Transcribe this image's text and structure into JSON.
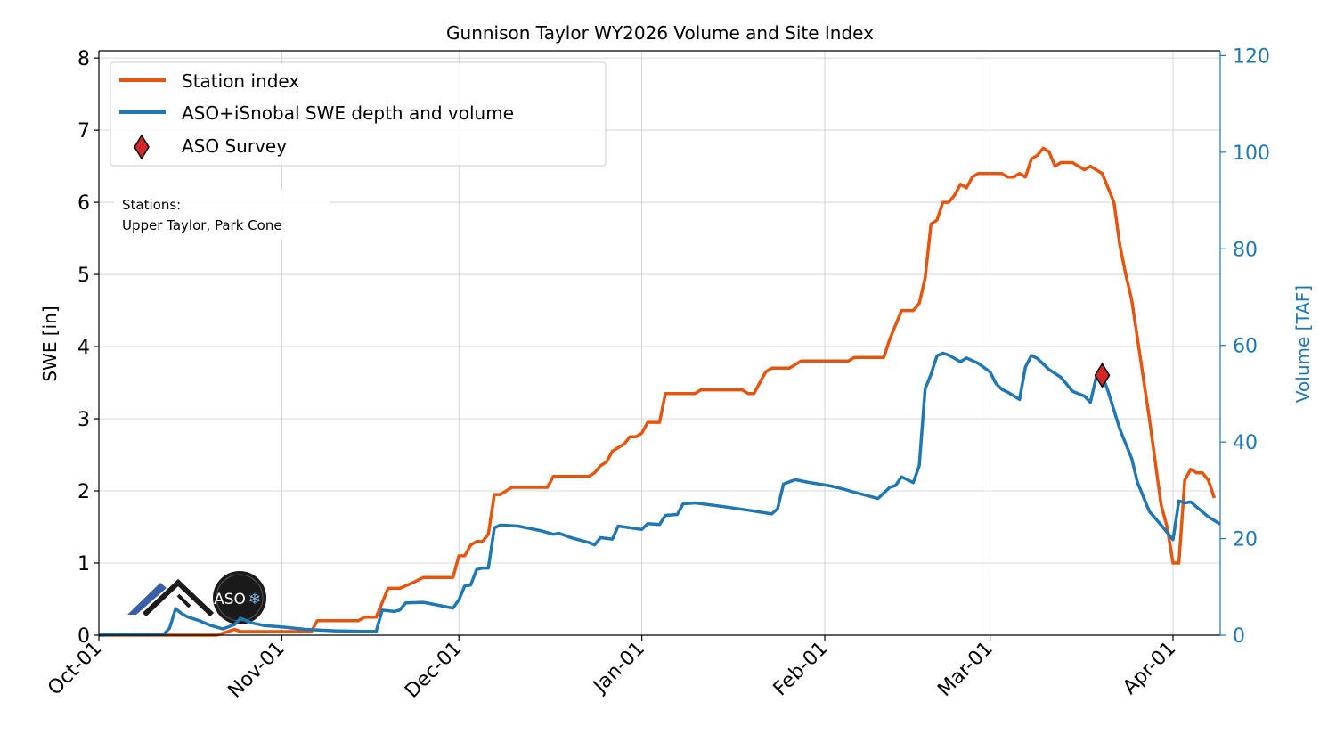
{
  "chart_data": {
    "type": "line",
    "title": "Gunnison Taylor WY2026 Volume and Site Index",
    "ylabel": "SWE [in]",
    "y2label": "Volume [TAF]",
    "ylim": [
      0,
      8.1
    ],
    "y2lim": [
      0,
      121
    ],
    "yticks": [
      0,
      1,
      2,
      3,
      4,
      5,
      6,
      7,
      8
    ],
    "y2ticks": [
      0,
      20,
      40,
      60,
      80,
      100,
      120
    ],
    "xlim": [
      "2025-10-01",
      "2026-04-09"
    ],
    "xticks": [
      {
        "date": "2025-10-01",
        "label": "Oct-01"
      },
      {
        "date": "2025-11-01",
        "label": "Nov-01"
      },
      {
        "date": "2025-12-01",
        "label": "Dec-01"
      },
      {
        "date": "2026-01-01",
        "label": "Jan-01"
      },
      {
        "date": "2026-02-01",
        "label": "Feb-01"
      },
      {
        "date": "2026-03-01",
        "label": "Mar-01"
      },
      {
        "date": "2026-04-01",
        "label": "Apr-01"
      }
    ],
    "grid": true,
    "legend_placement": "upper-left",
    "annotation": {
      "line1": "Stations:",
      "line2": "Upper Taylor, Park Cone"
    },
    "series": [
      {
        "name": "Station index",
        "axis": "left",
        "color": "#e6550d",
        "points": [
          [
            "2025-10-01",
            0
          ],
          [
            "2025-10-21",
            0
          ],
          [
            "2025-10-24",
            0.08
          ],
          [
            "2025-10-25",
            0.05
          ],
          [
            "2025-11-06",
            0.05
          ],
          [
            "2025-11-07",
            0.2
          ],
          [
            "2025-11-14",
            0.2
          ],
          [
            "2025-11-15",
            0.25
          ],
          [
            "2025-11-17",
            0.25
          ],
          [
            "2025-11-19",
            0.65
          ],
          [
            "2025-11-21",
            0.65
          ],
          [
            "2025-11-23",
            0.72
          ],
          [
            "2025-11-25",
            0.8
          ],
          [
            "2025-11-30",
            0.8
          ],
          [
            "2025-12-01",
            1.1
          ],
          [
            "2025-12-02",
            1.1
          ],
          [
            "2025-12-03",
            1.25
          ],
          [
            "2025-12-04",
            1.3
          ],
          [
            "2025-12-05",
            1.3
          ],
          [
            "2025-12-06",
            1.4
          ],
          [
            "2025-12-07",
            1.95
          ],
          [
            "2025-12-08",
            1.95
          ],
          [
            "2025-12-10",
            2.05
          ],
          [
            "2025-12-16",
            2.05
          ],
          [
            "2025-12-17",
            2.2
          ],
          [
            "2025-12-23",
            2.2
          ],
          [
            "2025-12-24",
            2.25
          ],
          [
            "2025-12-25",
            2.35
          ],
          [
            "2025-12-26",
            2.4
          ],
          [
            "2025-12-27",
            2.55
          ],
          [
            "2025-12-29",
            2.65
          ],
          [
            "2025-12-30",
            2.75
          ],
          [
            "2025-12-31",
            2.75
          ],
          [
            "2026-01-01",
            2.8
          ],
          [
            "2026-01-02",
            2.95
          ],
          [
            "2026-01-04",
            2.95
          ],
          [
            "2026-01-05",
            3.35
          ],
          [
            "2026-01-10",
            3.35
          ],
          [
            "2026-01-11",
            3.4
          ],
          [
            "2026-01-18",
            3.4
          ],
          [
            "2026-01-19",
            3.35
          ],
          [
            "2026-01-20",
            3.35
          ],
          [
            "2026-01-21",
            3.5
          ],
          [
            "2026-01-22",
            3.65
          ],
          [
            "2026-01-23",
            3.7
          ],
          [
            "2026-01-26",
            3.7
          ],
          [
            "2026-01-27",
            3.75
          ],
          [
            "2026-01-28",
            3.8
          ],
          [
            "2026-02-05",
            3.8
          ],
          [
            "2026-02-06",
            3.85
          ],
          [
            "2026-02-11",
            3.85
          ],
          [
            "2026-02-12",
            4.1
          ],
          [
            "2026-02-14",
            4.5
          ],
          [
            "2026-02-16",
            4.5
          ],
          [
            "2026-02-17",
            4.6
          ],
          [
            "2026-02-18",
            4.95
          ],
          [
            "2026-02-19",
            5.7
          ],
          [
            "2026-02-20",
            5.75
          ],
          [
            "2026-02-21",
            6.0
          ],
          [
            "2026-02-22",
            6.0
          ],
          [
            "2026-02-23",
            6.1
          ],
          [
            "2026-02-24",
            6.25
          ],
          [
            "2026-02-25",
            6.2
          ],
          [
            "2026-02-26",
            6.35
          ],
          [
            "2026-02-27",
            6.4
          ],
          [
            "2026-03-03",
            6.4
          ],
          [
            "2026-03-04",
            6.35
          ],
          [
            "2026-03-05",
            6.35
          ],
          [
            "2026-03-06",
            6.4
          ],
          [
            "2026-03-07",
            6.35
          ],
          [
            "2026-03-08",
            6.6
          ],
          [
            "2026-03-09",
            6.65
          ],
          [
            "2026-03-10",
            6.75
          ],
          [
            "2026-03-11",
            6.7
          ],
          [
            "2026-03-12",
            6.5
          ],
          [
            "2026-03-13",
            6.55
          ],
          [
            "2026-03-15",
            6.55
          ],
          [
            "2026-03-16",
            6.5
          ],
          [
            "2026-03-17",
            6.45
          ],
          [
            "2026-03-18",
            6.5
          ],
          [
            "2026-03-20",
            6.4
          ],
          [
            "2026-03-22",
            6.0
          ],
          [
            "2026-03-23",
            5.4
          ],
          [
            "2026-03-24",
            5.0
          ],
          [
            "2026-03-25",
            4.65
          ],
          [
            "2026-03-28",
            3.0
          ],
          [
            "2026-03-30",
            1.8
          ],
          [
            "2026-03-31",
            1.5
          ],
          [
            "2026-04-01",
            1.0
          ],
          [
            "2026-04-02",
            1.0
          ],
          [
            "2026-04-03",
            2.15
          ],
          [
            "2026-04-04",
            2.3
          ],
          [
            "2026-04-05",
            2.25
          ],
          [
            "2026-04-06",
            2.25
          ],
          [
            "2026-04-07",
            2.15
          ],
          [
            "2026-04-08",
            1.9
          ]
        ]
      },
      {
        "name": "ASO+iSnobal SWE depth and volume",
        "axis": "right",
        "color": "#1f77b4",
        "points": [
          [
            "2025-10-01",
            0
          ],
          [
            "2025-10-05",
            0.2
          ],
          [
            "2025-10-09",
            0.1
          ],
          [
            "2025-10-12",
            0.2
          ],
          [
            "2025-10-13",
            1.5
          ],
          [
            "2025-10-14",
            5.5
          ],
          [
            "2025-10-15",
            4.5
          ],
          [
            "2025-10-16",
            3.8
          ],
          [
            "2025-10-18",
            3.0
          ],
          [
            "2025-10-20",
            2.0
          ],
          [
            "2025-10-22",
            1.3
          ],
          [
            "2025-10-24",
            2.2
          ],
          [
            "2025-10-25",
            3.5
          ],
          [
            "2025-10-27",
            2.5
          ],
          [
            "2025-10-29",
            2.0
          ],
          [
            "2025-11-01",
            1.7
          ],
          [
            "2025-11-05",
            1.2
          ],
          [
            "2025-11-10",
            0.9
          ],
          [
            "2025-11-15",
            0.8
          ],
          [
            "2025-11-17",
            0.8
          ],
          [
            "2025-11-18",
            5.2
          ],
          [
            "2025-11-20",
            4.9
          ],
          [
            "2025-11-21",
            5.2
          ],
          [
            "2025-11-22",
            6.7
          ],
          [
            "2025-11-25",
            6.8
          ],
          [
            "2025-11-30",
            5.6
          ],
          [
            "2025-12-01",
            7.3
          ],
          [
            "2025-12-02",
            10.2
          ],
          [
            "2025-12-03",
            10.4
          ],
          [
            "2025-12-04",
            13.6
          ],
          [
            "2025-12-05",
            13.9
          ],
          [
            "2025-12-06",
            13.9
          ],
          [
            "2025-12-07",
            22.2
          ],
          [
            "2025-12-08",
            22.8
          ],
          [
            "2025-12-11",
            22.6
          ],
          [
            "2025-12-15",
            21.6
          ],
          [
            "2025-12-17",
            20.9
          ],
          [
            "2025-12-18",
            21.1
          ],
          [
            "2025-12-20",
            20.2
          ],
          [
            "2025-12-23",
            19.2
          ],
          [
            "2025-12-24",
            18.7
          ],
          [
            "2025-12-25",
            20.2
          ],
          [
            "2025-12-27",
            19.9
          ],
          [
            "2025-12-28",
            22.6
          ],
          [
            "2026-01-01",
            21.9
          ],
          [
            "2026-01-02",
            23.1
          ],
          [
            "2026-01-04",
            22.9
          ],
          [
            "2026-01-05",
            24.8
          ],
          [
            "2026-01-07",
            25.0
          ],
          [
            "2026-01-08",
            27.2
          ],
          [
            "2026-01-10",
            27.4
          ],
          [
            "2026-01-15",
            26.6
          ],
          [
            "2026-01-20",
            25.7
          ],
          [
            "2026-01-23",
            25.1
          ],
          [
            "2026-01-24",
            26.2
          ],
          [
            "2026-01-25",
            31.3
          ],
          [
            "2026-01-27",
            32.2
          ],
          [
            "2026-01-29",
            31.7
          ],
          [
            "2026-02-02",
            30.9
          ],
          [
            "2026-02-04",
            30.3
          ],
          [
            "2026-02-06",
            29.6
          ],
          [
            "2026-02-10",
            28.3
          ],
          [
            "2026-02-12",
            30.6
          ],
          [
            "2026-02-13",
            31.0
          ],
          [
            "2026-02-14",
            32.8
          ],
          [
            "2026-02-16",
            31.6
          ],
          [
            "2026-02-17",
            35.1
          ],
          [
            "2026-02-18",
            51.0
          ],
          [
            "2026-02-19",
            54.0
          ],
          [
            "2026-02-20",
            57.8
          ],
          [
            "2026-02-21",
            58.4
          ],
          [
            "2026-02-22",
            58.0
          ],
          [
            "2026-02-24",
            56.6
          ],
          [
            "2026-02-25",
            57.4
          ],
          [
            "2026-02-27",
            56.3
          ],
          [
            "2026-03-01",
            54.5
          ],
          [
            "2026-03-02",
            52.1
          ],
          [
            "2026-03-03",
            50.9
          ],
          [
            "2026-03-04",
            50.3
          ],
          [
            "2026-03-06",
            48.8
          ],
          [
            "2026-03-07",
            55.5
          ],
          [
            "2026-03-08",
            57.9
          ],
          [
            "2026-03-09",
            57.3
          ],
          [
            "2026-03-11",
            55.0
          ],
          [
            "2026-03-13",
            53.4
          ],
          [
            "2026-03-15",
            50.5
          ],
          [
            "2026-03-17",
            49.5
          ],
          [
            "2026-03-18",
            48.2
          ],
          [
            "2026-03-19",
            53.4
          ],
          [
            "2026-03-20",
            53.8
          ],
          [
            "2026-03-21",
            50.5
          ],
          [
            "2026-03-23",
            42.6
          ],
          [
            "2026-03-25",
            36.6
          ],
          [
            "2026-03-26",
            31.6
          ],
          [
            "2026-03-28",
            25.6
          ],
          [
            "2026-03-30",
            22.8
          ],
          [
            "2026-04-01",
            19.8
          ],
          [
            "2026-04-02",
            27.8
          ],
          [
            "2026-04-03",
            27.4
          ],
          [
            "2026-04-04",
            27.6
          ],
          [
            "2026-04-07",
            24.5
          ],
          [
            "2026-04-09",
            23.0
          ]
        ]
      }
    ],
    "survey": {
      "name": "ASO Survey",
      "date": "2026-03-20",
      "axis": "right",
      "value": 53.8,
      "color": "#d62728"
    }
  },
  "logos": {
    "left": "airborne-snow-mountain-logo",
    "right": {
      "text": "ASO",
      "ring_text": "AIRBORNE SNOW OBSERVATORIES, INC"
    }
  }
}
